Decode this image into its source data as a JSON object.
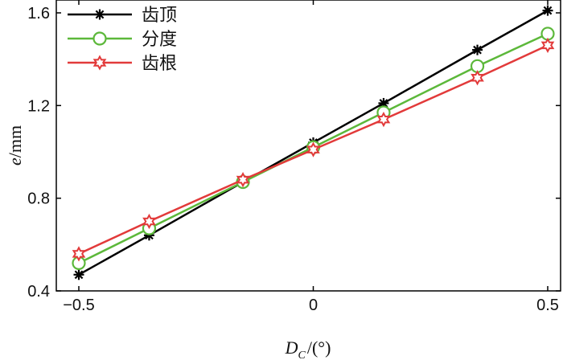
{
  "chart_data": {
    "type": "line",
    "xlabel_main": "D",
    "xlabel_sub": "C",
    "xlabel_rest": "/(°)",
    "ylabel_main": "e",
    "ylabel_rest": "/mm",
    "xlim": [
      -0.5,
      0.5
    ],
    "ylim": [
      0.4,
      1.6
    ],
    "xticks": [
      -0.5,
      0,
      0.5
    ],
    "xtick_labels": [
      "−0.5",
      "0",
      "0.5"
    ],
    "yticks": [
      0.4,
      0.8,
      1.2,
      1.6
    ],
    "ytick_labels": [
      "0.4",
      "0.8",
      "1.2",
      "1.6"
    ],
    "x": [
      -0.5,
      -0.35,
      -0.15,
      0,
      0.15,
      0.35,
      0.5
    ],
    "series": [
      {
        "name": "齿顶",
        "color": "#000000",
        "marker": "asterisk",
        "values": [
          0.47,
          0.64,
          0.87,
          1.04,
          1.21,
          1.44,
          1.61
        ]
      },
      {
        "name": "分度",
        "color": "#5cb83a",
        "marker": "circle",
        "values": [
          0.52,
          0.67,
          0.87,
          1.02,
          1.17,
          1.37,
          1.51
        ]
      },
      {
        "name": "齿根",
        "color": "#e23a3a",
        "marker": "star",
        "values": [
          0.56,
          0.7,
          0.88,
          1.01,
          1.14,
          1.32,
          1.46
        ]
      }
    ],
    "legend_position": "top-left",
    "grid": false
  }
}
